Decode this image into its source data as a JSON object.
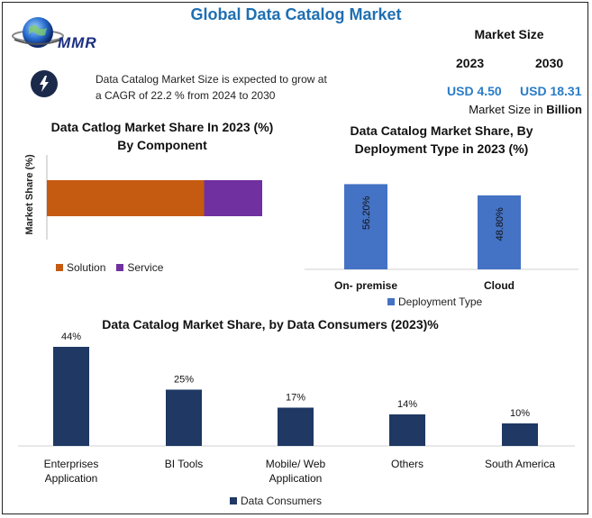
{
  "header": {
    "title": "Global Data Catalog Market",
    "logo_text": "MMR",
    "market_size_label": "Market Size",
    "year_start": "2023",
    "year_end": "2030",
    "value_start": "USD 4.50",
    "value_end": "USD 18.31",
    "unit_prefix": "Market Size in ",
    "unit_bold": "Billion",
    "cagr_text": "Data Catalog Market Size is expected to grow at a CAGR of 22.2 % from 2024 to 2030"
  },
  "colors": {
    "title": "#1f6fb2",
    "solution": "#c55a11",
    "service": "#7030a0",
    "deployment": "#4472c4",
    "consumers": "#1f3864"
  },
  "chart_data": [
    {
      "type": "bar",
      "orientation": "horizontal-stacked",
      "title_line1": "Data Catlog Market Share In 2023 (%)",
      "title_line2": "By Component",
      "ylabel": "Market Share (%)",
      "series": [
        {
          "name": "Solution",
          "values": [
            73
          ]
        },
        {
          "name": "Service",
          "values": [
            27
          ]
        }
      ]
    },
    {
      "type": "bar",
      "title_line1": "Data Catalog Market Share, By",
      "title_line2": "Deployment Type in 2023 (%)",
      "categories": [
        "On- premise",
        "Cloud"
      ],
      "values": [
        56.2,
        48.8
      ],
      "labels": [
        "56.20%",
        "48.80%"
      ],
      "legend": "Deployment Type",
      "ylim": [
        0,
        60
      ]
    },
    {
      "type": "bar",
      "title": "Data Catalog Market Share, by Data Consumers (2023)%",
      "categories": [
        [
          "Enterprises",
          "Application"
        ],
        [
          "BI Tools"
        ],
        [
          "Mobile/ Web",
          "Application"
        ],
        [
          "Others"
        ],
        [
          "South America"
        ]
      ],
      "values": [
        44,
        25,
        17,
        14,
        10
      ],
      "labels": [
        "44%",
        "25%",
        "17%",
        "14%",
        "10%"
      ],
      "legend": "Data Consumers",
      "ylim": [
        0,
        44
      ]
    }
  ]
}
